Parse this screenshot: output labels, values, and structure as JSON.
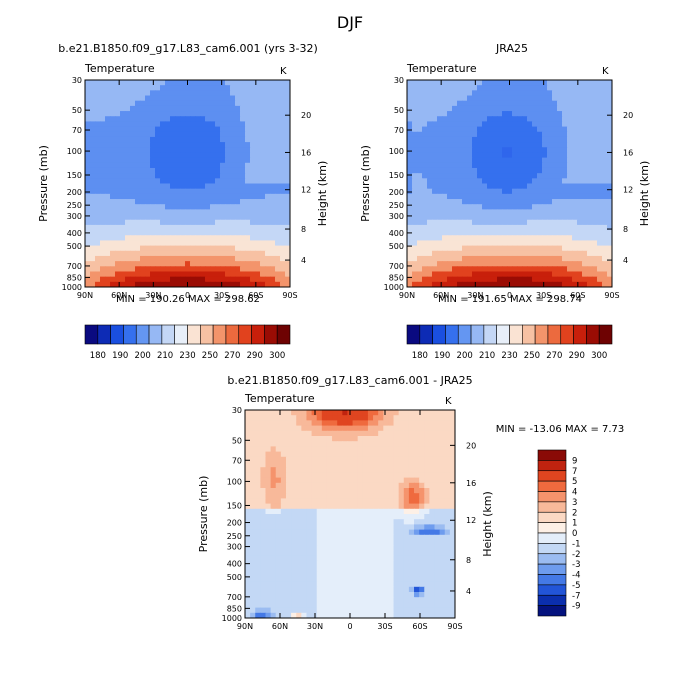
{
  "page_title": "DJF",
  "chart_data": [
    {
      "type": "heatmap",
      "title": "b.e21.B1850.f09_g17.L83_cam6.001 (yrs 3-32)",
      "subtitle_left": "Temperature",
      "subtitle_right": "K",
      "ylabel": "Pressure (mb)",
      "y2label": "Height (km)",
      "x_ticks": [
        "90N",
        "60N",
        "30N",
        "0",
        "30S",
        "60S",
        "90S"
      ],
      "y_ticks": [
        "30",
        "50",
        "70",
        "100",
        "150",
        "200",
        "250",
        "300",
        "400",
        "500",
        "700",
        "850",
        "1000"
      ],
      "y2_ticks": [
        "20",
        "16",
        "12",
        "8",
        "4"
      ],
      "stats": "MIN = 190.26   MAX = 298.62",
      "colorbar": {
        "labels": [
          "180",
          "190",
          "200",
          "210",
          "230",
          "250",
          "270",
          "290",
          "300"
        ],
        "colors": [
          "#0a0a80",
          "#0d2bb5",
          "#1a4fe0",
          "#3570ee",
          "#6496f2",
          "#96b8f4",
          "#c4d7f6",
          "#e8eff9",
          "#fae3d3",
          "#f7c1a3",
          "#f3946b",
          "#ec6a3e",
          "#e1421e",
          "#c81f0b",
          "#9a0c04",
          "#6e0202"
        ]
      },
      "min": 190.26,
      "max": 298.62
    },
    {
      "type": "heatmap",
      "title": "JRA25",
      "subtitle_left": "Temperature",
      "subtitle_right": "K",
      "ylabel": "Pressure (mb)",
      "y2label": "Height (km)",
      "x_ticks": [
        "90N",
        "60N",
        "30N",
        "0",
        "30S",
        "60S",
        "90S"
      ],
      "y_ticks": [
        "30",
        "50",
        "70",
        "100",
        "150",
        "200",
        "250",
        "300",
        "400",
        "500",
        "700",
        "850",
        "1000"
      ],
      "y2_ticks": [
        "20",
        "16",
        "12",
        "8",
        "4"
      ],
      "stats": "MIN = 191.65   MAX = 298.74",
      "colorbar": {
        "labels": [
          "180",
          "190",
          "200",
          "210",
          "230",
          "250",
          "270",
          "290",
          "300"
        ],
        "colors": [
          "#0a0a80",
          "#0d2bb5",
          "#1a4fe0",
          "#3570ee",
          "#6496f2",
          "#96b8f4",
          "#c4d7f6",
          "#e8eff9",
          "#fae3d3",
          "#f7c1a3",
          "#f3946b",
          "#ec6a3e",
          "#e1421e",
          "#c81f0b",
          "#9a0c04",
          "#6e0202"
        ]
      },
      "min": 191.65,
      "max": 298.74
    },
    {
      "type": "heatmap",
      "title": "b.e21.B1850.f09_g17.L83_cam6.001  - JRA25",
      "subtitle_left": "Temperature",
      "subtitle_right": "K",
      "ylabel": "Pressure (mb)",
      "y2label": "Height (km)",
      "x_ticks": [
        "90N",
        "60N",
        "30N",
        "0",
        "30S",
        "60S",
        "90S"
      ],
      "y_ticks": [
        "30",
        "50",
        "70",
        "100",
        "150",
        "200",
        "250",
        "300",
        "400",
        "500",
        "700",
        "850",
        "1000"
      ],
      "y2_ticks": [
        "20",
        "16",
        "12",
        "8",
        "4"
      ],
      "stats": "MIN = -13.06   MAX =    7.73",
      "colorbar": {
        "labels": [
          "9",
          "7",
          "5",
          "4",
          "3",
          "2",
          "1",
          "0",
          "-1",
          "-2",
          "-3",
          "-4",
          "-5",
          "-7",
          "-9"
        ],
        "colors": [
          "#8a0a06",
          "#c0230f",
          "#e04520",
          "#ef6a3e",
          "#f5936c",
          "#f8b99a",
          "#fbd9c4",
          "#fdf0e6",
          "#e4eefa",
          "#c3d8f5",
          "#9bbcf1",
          "#6e9cee",
          "#4479e6",
          "#2255d8",
          "#0b2fae",
          "#04127e"
        ]
      },
      "min": -13.06,
      "max": 7.73
    }
  ]
}
